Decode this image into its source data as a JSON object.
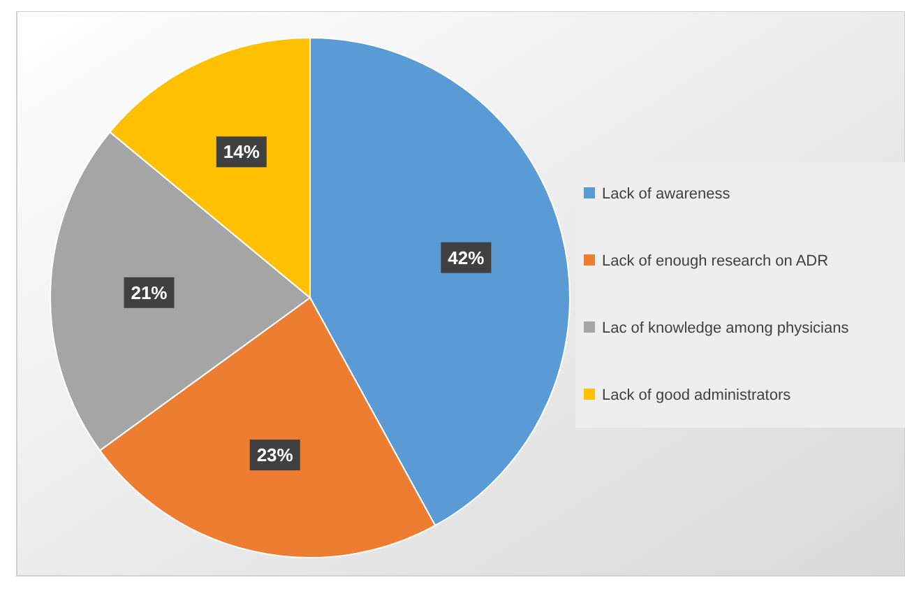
{
  "chart_data": {
    "type": "pie",
    "categories": [
      "Lack of awareness",
      "Lack of enough research on ADR",
      "Lac of knowledge among physicians",
      "Lack of good administrators"
    ],
    "values": [
      42,
      23,
      21,
      14
    ],
    "value_labels": [
      "42%",
      "23%",
      "21%",
      "14%"
    ],
    "colors": [
      "#5b9bd5",
      "#ed7d31",
      "#a5a5a5",
      "#ffc000"
    ],
    "legend": "right"
  }
}
